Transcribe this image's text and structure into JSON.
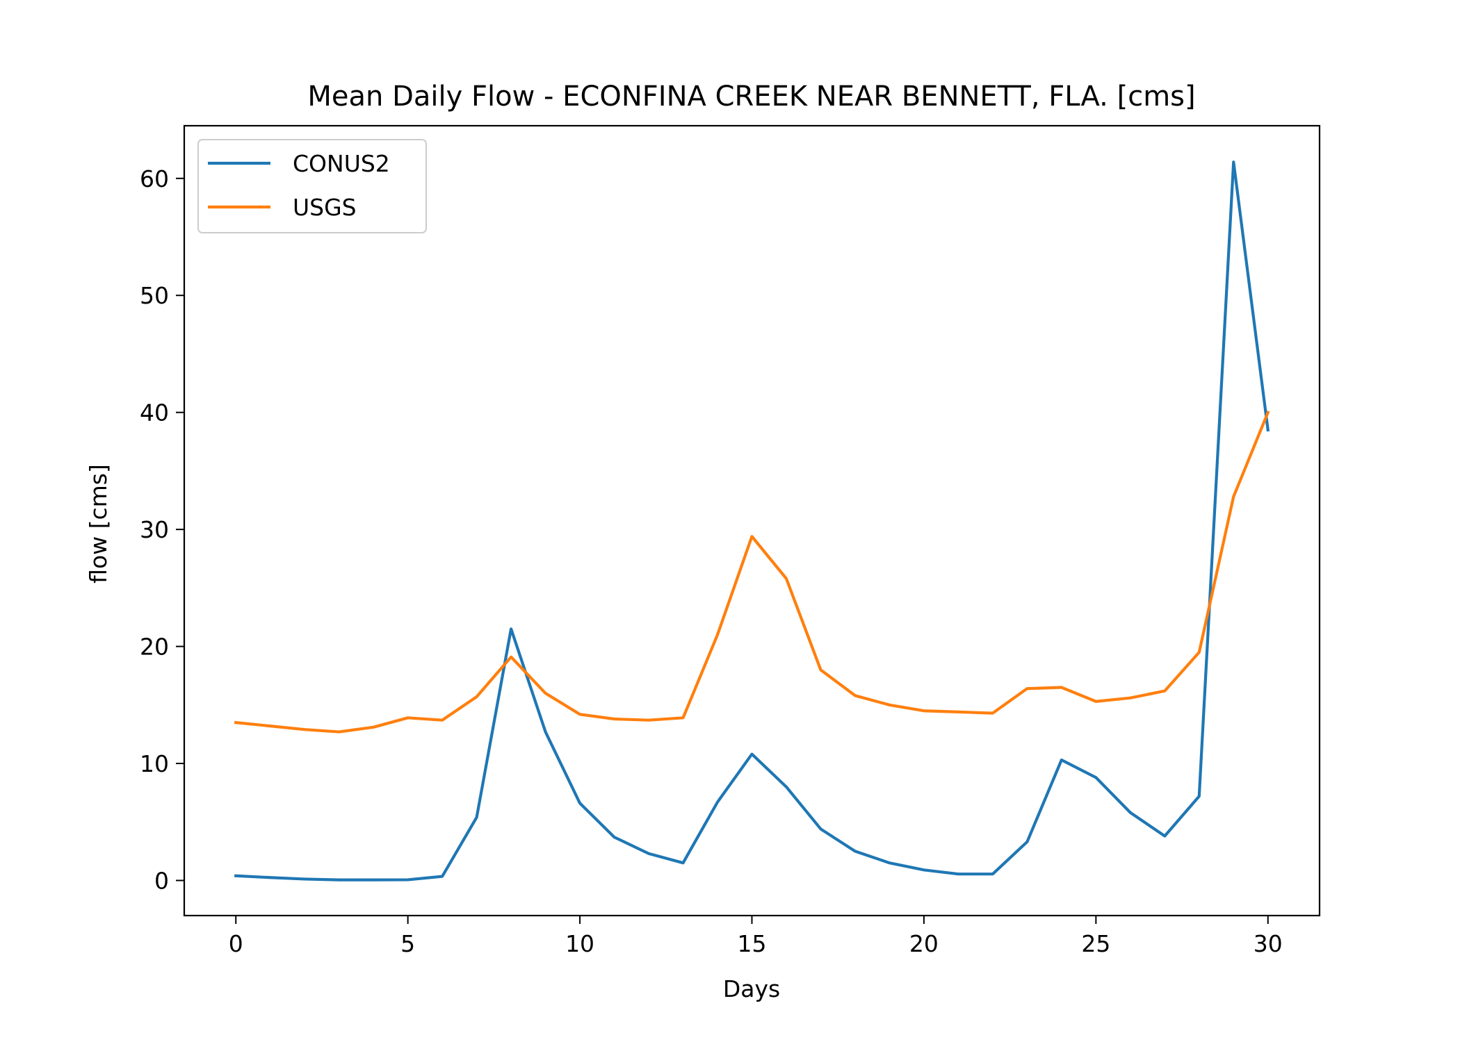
{
  "chart_data": {
    "type": "line",
    "title": "Mean Daily Flow - ECONFINA CREEK NEAR BENNETT, FLA. [cms]",
    "xlabel": "Days",
    "ylabel": "flow [cms]",
    "xlim": [
      -1.5,
      31.5
    ],
    "ylim": [
      -3.0,
      64.5
    ],
    "xticks": [
      0,
      5,
      10,
      15,
      20,
      25,
      30
    ],
    "yticks": [
      0,
      10,
      20,
      30,
      40,
      50,
      60
    ],
    "grid": false,
    "legend_position": "upper-left",
    "x": [
      0,
      1,
      2,
      3,
      4,
      5,
      6,
      7,
      8,
      9,
      10,
      11,
      12,
      13,
      14,
      15,
      16,
      17,
      18,
      19,
      20,
      21,
      22,
      23,
      24,
      25,
      26,
      27,
      28,
      29,
      30
    ],
    "series": [
      {
        "name": "CONUS2",
        "color": "#1f77b4",
        "values": [
          0.4,
          0.25,
          0.12,
          0.05,
          0.05,
          0.06,
          0.35,
          5.4,
          21.5,
          12.7,
          6.6,
          3.7,
          2.3,
          1.5,
          6.7,
          10.8,
          8.0,
          4.4,
          2.5,
          1.5,
          0.9,
          0.55,
          0.55,
          3.3,
          10.3,
          8.8,
          5.8,
          3.8,
          7.2,
          61.4,
          38.5
        ]
      },
      {
        "name": "USGS",
        "color": "#ff7f0e",
        "values": [
          13.5,
          13.2,
          12.9,
          12.7,
          13.1,
          13.9,
          13.7,
          15.7,
          19.1,
          16.0,
          14.2,
          13.8,
          13.7,
          13.9,
          21.0,
          29.4,
          25.8,
          18.0,
          15.8,
          15.0,
          14.5,
          14.4,
          14.3,
          16.4,
          16.5,
          15.3,
          15.6,
          16.2,
          19.5,
          32.8,
          40.0
        ]
      }
    ]
  }
}
